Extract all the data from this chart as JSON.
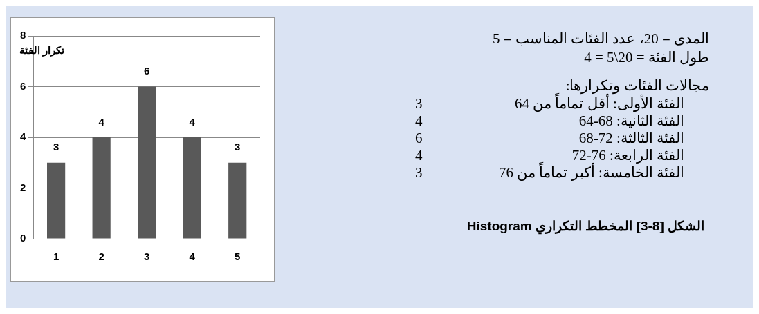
{
  "chart_data": {
    "type": "bar",
    "title": "الشكل [8-3] المخطط التكراري Histogram",
    "ylabel": "تكرار الفئة",
    "categories": [
      "1",
      "2",
      "3",
      "4",
      "5"
    ],
    "values": [
      3,
      4,
      6,
      4,
      3
    ],
    "color": "#595959",
    "ylim": [
      0,
      8
    ],
    "yticks": [
      0,
      2,
      4,
      6,
      8
    ],
    "grid": "y",
    "legend": false,
    "data_labels": true,
    "annotations": [
      "المدى = 20، عدد الفئات المناسب = 5",
      "طول الفئة = 20\\5 = 4",
      "مجالات الفئات وتكرارها:",
      "الفئة الأولى: أقل تماماً من 64",
      "3",
      "الفئة الثانية:    68-64",
      "4",
      "الفئة الثالثة:    72-68",
      "6",
      "الفئة الرابعة:  76-72",
      "4",
      "الفئة الخامسة: أكبر تماماً من 76",
      "3"
    ]
  }
}
